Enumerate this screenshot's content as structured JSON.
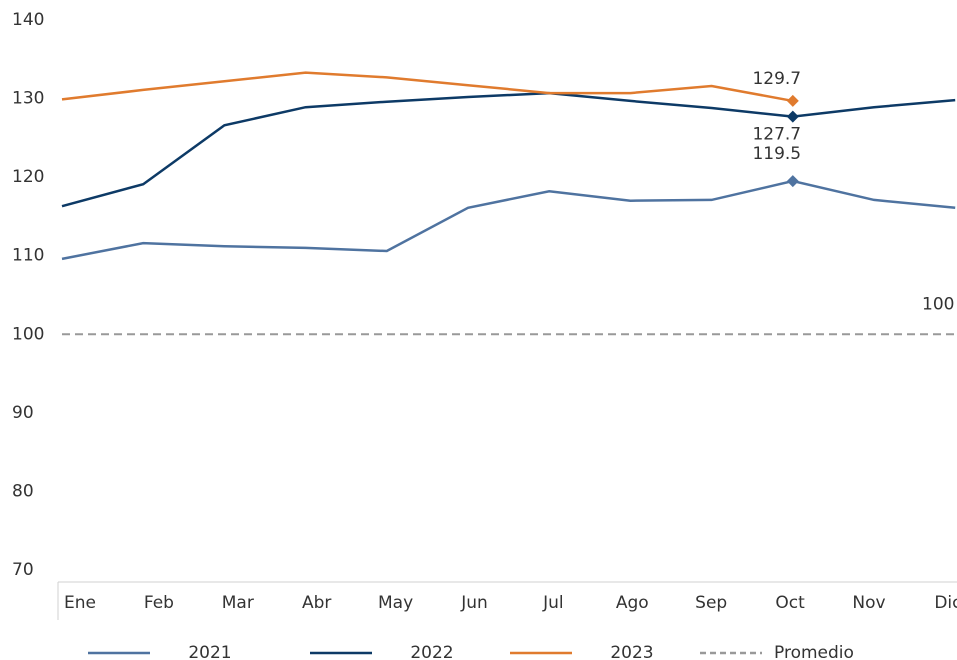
{
  "chart_data": {
    "type": "line",
    "categories": [
      "Ene",
      "Feb",
      "Mar",
      "Abr",
      "May",
      "Jun",
      "Jul",
      "Ago",
      "Sep",
      "Oct",
      "Nov",
      "Dic"
    ],
    "series": [
      {
        "name": "2021",
        "color": "#4f73a0",
        "values": [
          109.6,
          111.6,
          111.2,
          111.0,
          110.6,
          116.1,
          118.2,
          117.0,
          117.1,
          119.5,
          117.1,
          116.1
        ]
      },
      {
        "name": "2022",
        "color": "#0d3a66",
        "values": [
          116.3,
          119.1,
          126.6,
          128.9,
          129.6,
          130.2,
          130.7,
          129.7,
          128.8,
          127.7,
          128.9,
          129.8
        ]
      },
      {
        "name": "2023",
        "color": "#e07b2e",
        "values": [
          129.9,
          131.1,
          132.2,
          133.3,
          132.7,
          131.7,
          130.7,
          130.7,
          131.6,
          129.7,
          null,
          null
        ]
      },
      {
        "name": "Promedio",
        "color": "#999999",
        "dashed": true,
        "values": [
          100,
          100,
          100,
          100,
          100,
          100,
          100,
          100,
          100,
          100,
          100,
          100
        ]
      }
    ],
    "ylim": [
      70,
      140
    ],
    "yticks": [
      70,
      80,
      90,
      100,
      110,
      120,
      130,
      140
    ],
    "grid": false
  }
}
